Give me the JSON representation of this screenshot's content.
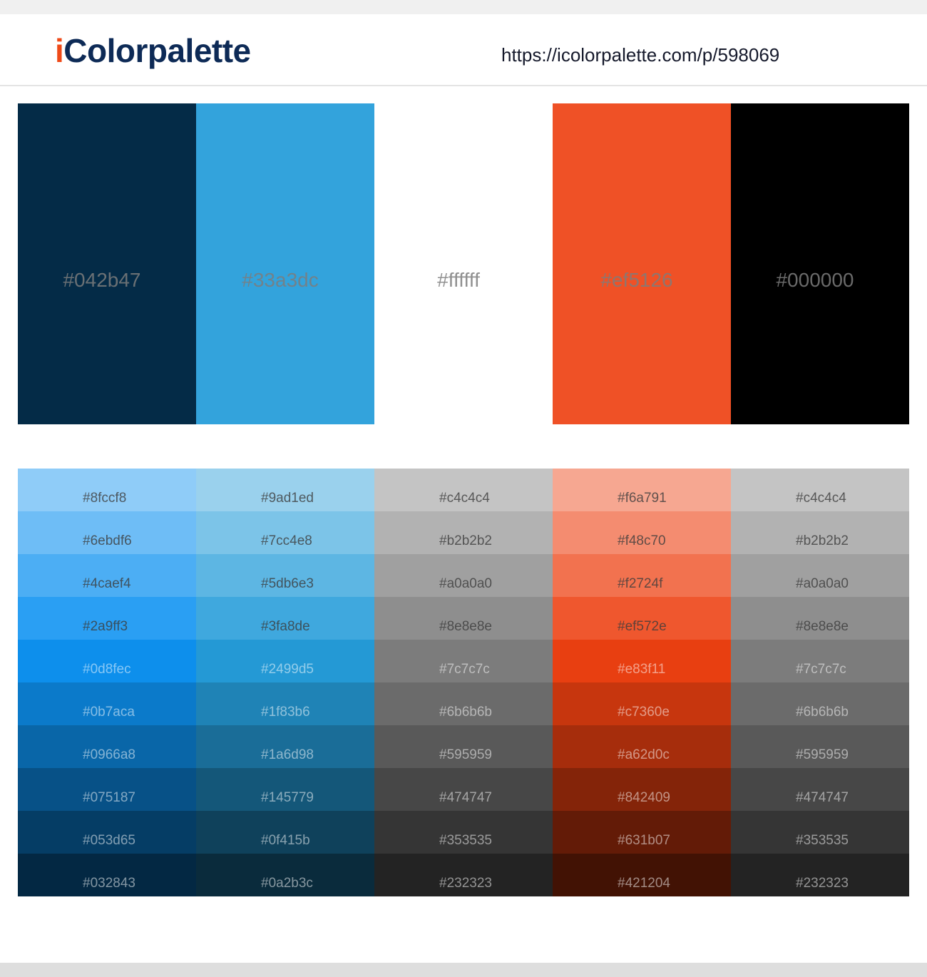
{
  "header": {
    "logo": "iColorpalette",
    "url": "https://icolorpalette.com/p/598069"
  },
  "palette": [
    "#042b47",
    "#33a3dc",
    "#ffffff",
    "#ef5126",
    "#000000"
  ],
  "shades": [
    [
      "#8fccf8",
      "#6ebdf6",
      "#4caef4",
      "#2a9ff3",
      "#0d8fec",
      "#0b7aca",
      "#0966a8",
      "#075187",
      "#053d65",
      "#032843"
    ],
    [
      "#9ad1ed",
      "#7cc4e8",
      "#5db6e3",
      "#3fa8de",
      "#2499d5",
      "#1f83b6",
      "#1a6d98",
      "#145779",
      "#0f415b",
      "#0a2b3c"
    ],
    [
      "#c4c4c4",
      "#b2b2b2",
      "#a0a0a0",
      "#8e8e8e",
      "#7c7c7c",
      "#6b6b6b",
      "#595959",
      "#474747",
      "#353535",
      "#232323"
    ],
    [
      "#f6a791",
      "#f48c70",
      "#f2724f",
      "#ef572e",
      "#e83f11",
      "#c7360e",
      "#a62d0c",
      "#842409",
      "#631b07",
      "#421204"
    ],
    [
      "#c4c4c4",
      "#b2b2b2",
      "#a0a0a0",
      "#8e8e8e",
      "#7c7c7c",
      "#6b6b6b",
      "#595959",
      "#474747",
      "#353535",
      "#232323"
    ]
  ]
}
